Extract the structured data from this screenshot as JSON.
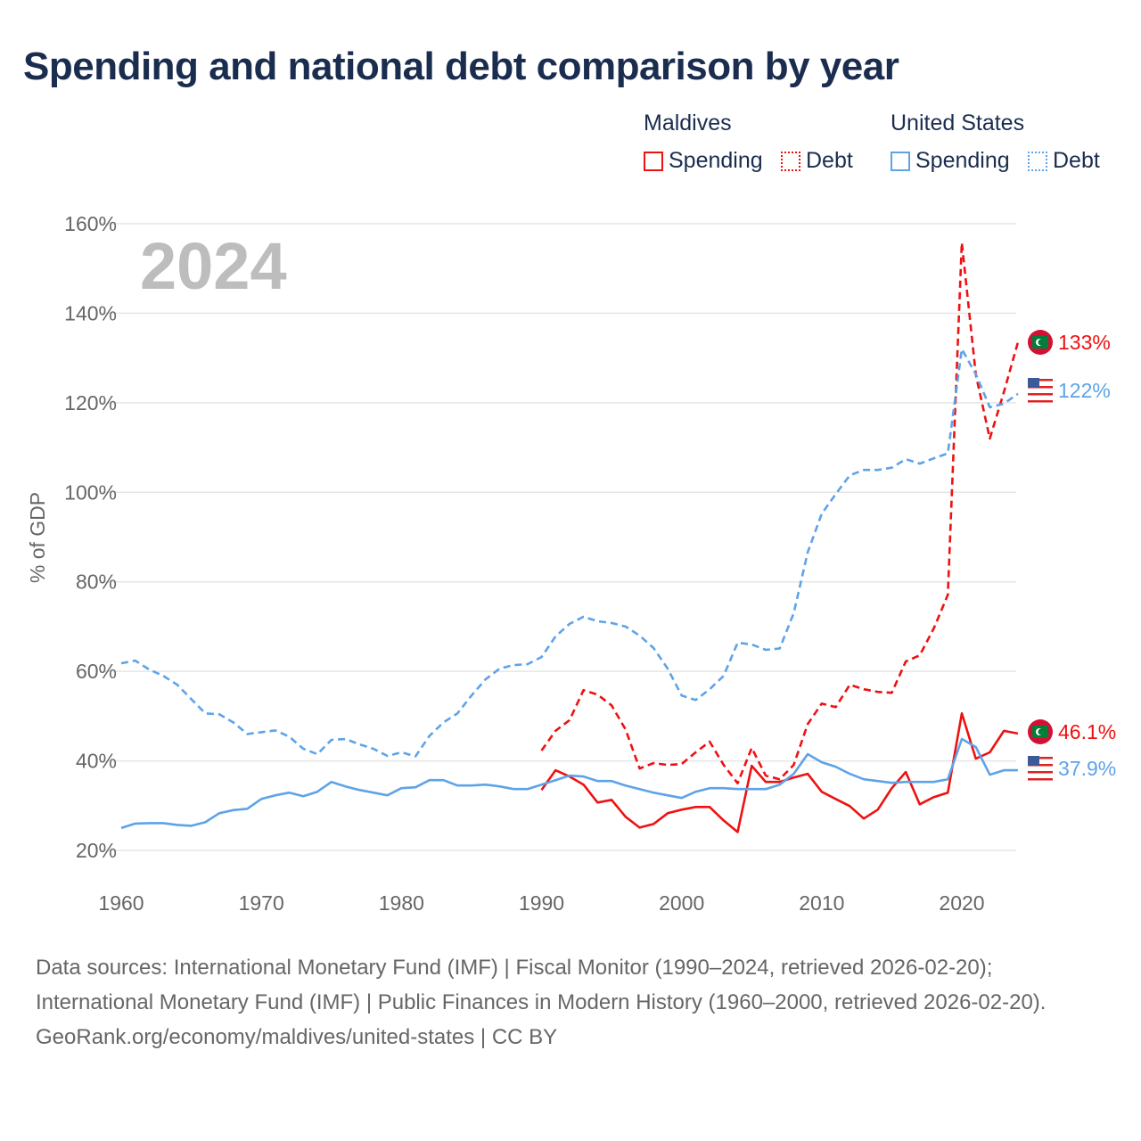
{
  "title": "Spending and national debt comparison by year",
  "legend": {
    "groups": [
      {
        "name": "Maldives",
        "color": "#ee1111",
        "items": [
          "Spending",
          "Debt"
        ]
      },
      {
        "name": "United States",
        "color": "#5ea3e8",
        "items": [
          "Spending",
          "Debt"
        ]
      }
    ]
  },
  "chart_data": {
    "type": "line",
    "title": "Spending and national debt comparison by year",
    "year_label": "2024",
    "xlabel": "",
    "ylabel": "% of GDP",
    "xlim": [
      1960,
      2024
    ],
    "ylim": [
      20,
      160
    ],
    "x_ticks": [
      "1960",
      "1970",
      "1980",
      "1990",
      "2000",
      "2010",
      "2020"
    ],
    "y_ticks": [
      "20%",
      "40%",
      "60%",
      "80%",
      "100%",
      "120%",
      "140%",
      "160%"
    ],
    "series": [
      {
        "name": "Maldives Spending",
        "color": "#ee1111",
        "dash": false,
        "start": 1990,
        "end_label": "46.1%",
        "values": [
          33.5,
          37.9,
          36.5,
          34.7,
          30.7,
          31.3,
          27.5,
          25.1,
          25.9,
          28.3,
          29.1,
          29.7,
          29.7,
          26.7,
          24.1,
          38.9,
          35.3,
          35.3,
          36.3,
          37.1,
          33.1,
          31.5,
          29.9,
          27.1,
          29.1,
          33.9,
          37.5,
          30.3,
          31.9,
          32.9,
          50.6,
          40.5,
          41.9,
          46.7,
          46.1
        ]
      },
      {
        "name": "Maldives Debt",
        "color": "#ee1111",
        "dash": true,
        "start": 1990,
        "end_label": "133%",
        "values": [
          42.3,
          46.7,
          49.1,
          55.8,
          54.8,
          52.4,
          47,
          38.3,
          39.5,
          39.1,
          39.3,
          41.9,
          44.3,
          39.1,
          35,
          42.9,
          36.7,
          35.9,
          39.1,
          48.2,
          52.8,
          52,
          57,
          56,
          55.4,
          55.2,
          62.2,
          63.6,
          69.6,
          77.1,
          155.8,
          126.3,
          112,
          122.4,
          133.5
        ]
      },
      {
        "name": "United States Spending",
        "color": "#5ea3e8",
        "dash": false,
        "start": 1960,
        "end_label": "37.9%",
        "values": [
          25,
          26,
          26.1,
          26.1,
          25.7,
          25.5,
          26.3,
          28.3,
          29,
          29.3,
          31.5,
          32.3,
          32.9,
          32.1,
          33.1,
          35.3,
          34.3,
          33.5,
          32.9,
          32.3,
          33.9,
          34.1,
          35.7,
          35.7,
          34.5,
          34.5,
          34.7,
          34.3,
          33.7,
          33.7,
          34.7,
          35.7,
          36.7,
          36.5,
          35.5,
          35.5,
          34.5,
          33.7,
          32.9,
          32.3,
          31.7,
          33.1,
          33.9,
          33.9,
          33.7,
          33.7,
          33.7,
          34.7,
          37.1,
          41.5,
          39.7,
          38.7,
          37.1,
          35.9,
          35.5,
          35.1,
          35.3,
          35.3,
          35.3,
          35.9,
          44.9,
          43.1,
          36.9,
          37.9,
          37.9
        ]
      },
      {
        "name": "United States Debt",
        "color": "#5ea3e8",
        "dash": true,
        "start": 1960,
        "end_label": "122%",
        "values": [
          61.8,
          62.4,
          60.4,
          59,
          57,
          53.8,
          50.6,
          50.4,
          48.6,
          46,
          46.4,
          46.8,
          45.4,
          42.7,
          41.5,
          44.7,
          44.9,
          43.7,
          42.7,
          41.1,
          41.9,
          41,
          45.6,
          48.6,
          50.6,
          54.6,
          58.2,
          60.6,
          61.4,
          61.6,
          63.2,
          67.8,
          70.6,
          72.2,
          71.2,
          70.8,
          70,
          68,
          65.2,
          60.6,
          54.6,
          53.6,
          56,
          59,
          66.4,
          66,
          64.8,
          65.1,
          73,
          86.6,
          95.2,
          99.6,
          103.8,
          105,
          105,
          105.5,
          107.4,
          106.4,
          107.6,
          108.7,
          132,
          126.4,
          119,
          119.8,
          122
        ]
      }
    ]
  },
  "footer": {
    "sources": "Data sources: International Monetary Fund (IMF) | Fiscal Monitor (1990–2024, retrieved 2026-02-20); International Monetary Fund (IMF) | Public Finances in Modern History (1960–2000, retrieved 2026-02-20).",
    "credit": "GeoRank.org/economy/maldives/united-states | CC BY"
  }
}
